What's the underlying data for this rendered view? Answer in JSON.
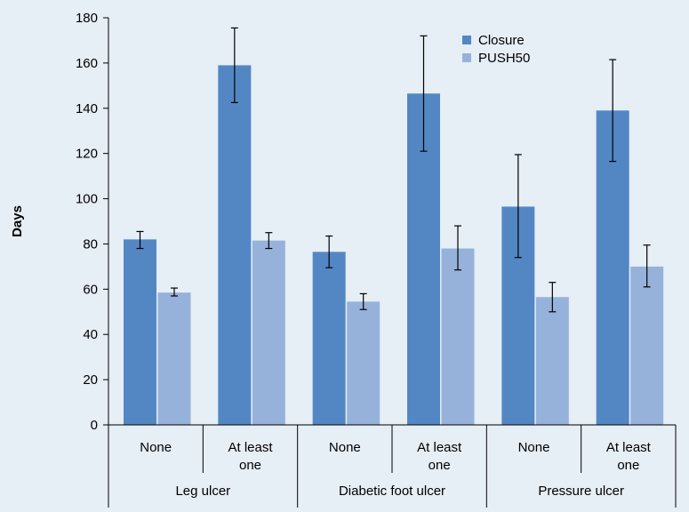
{
  "colors": {
    "background": "#e6eef6",
    "closure": "#5387c4",
    "push50": "#97b2da",
    "axis": "#000000"
  },
  "chart_data": {
    "type": "bar",
    "ylabel": "Days",
    "xlabel": "",
    "ylim": [
      0,
      180
    ],
    "yticks": [
      0,
      20,
      40,
      60,
      80,
      100,
      120,
      140,
      160,
      180
    ],
    "grid": false,
    "legend_position": "top-right",
    "groups": [
      {
        "label": "Leg ulcer",
        "subcategories": [
          {
            "lines": [
              "None"
            ]
          },
          {
            "lines": [
              "At least",
              "one"
            ]
          }
        ]
      },
      {
        "label": "Diabetic foot ulcer",
        "subcategories": [
          {
            "lines": [
              "None"
            ]
          },
          {
            "lines": [
              "At least",
              "one"
            ]
          }
        ]
      },
      {
        "label": "Pressure ulcer",
        "subcategories": [
          {
            "lines": [
              "None"
            ]
          },
          {
            "lines": [
              "At least",
              "one"
            ]
          }
        ]
      }
    ],
    "series": [
      {
        "name": "Closure",
        "color": "#5387c4",
        "values": [
          82,
          159,
          76.5,
          146.5,
          96.5,
          139
        ],
        "error_low": [
          78,
          142.5,
          69.5,
          121,
          74,
          116.5
        ],
        "error_high": [
          85.5,
          175.5,
          83.5,
          172,
          119.5,
          161.5
        ]
      },
      {
        "name": "PUSH50",
        "color": "#97b2da",
        "values": [
          58.5,
          81.5,
          54.5,
          78,
          56.5,
          70
        ],
        "error_low": [
          57,
          78,
          51,
          68.5,
          50,
          61
        ],
        "error_high": [
          60.5,
          85,
          58,
          88,
          63,
          79.5
        ]
      }
    ]
  }
}
